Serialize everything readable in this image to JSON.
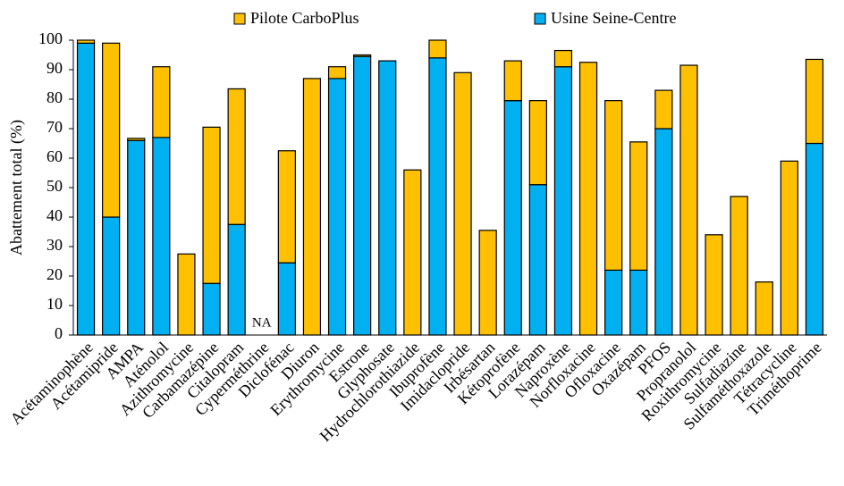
{
  "chart_data": {
    "type": "stacked_bar",
    "ylabel": "Abattement total (%)",
    "categories": [
      "Acétaminophène",
      "Acétamipride",
      "AMPA",
      "Aténolol",
      "Azithromycine",
      "Carbamazépine",
      "Citalopram",
      "Cyperméthrine",
      "Diclofénac",
      "Diuron",
      "Erythromycine",
      "Estrone",
      "Glyphosate",
      "Hydrochlorothiazide",
      "Ibuprofène",
      "Imidaclopride",
      "Irbésartan",
      "Kétoprofène",
      "Lorazépam",
      "Naproxène",
      "Norfloxacine",
      "Ofloxacine",
      "Oxazépam",
      "PFOS",
      "Propranolol",
      "Roxithromycine",
      "Sulfadiazine",
      "Sulfaméthoxazole",
      "Tétracycline",
      "Triméthoprime"
    ],
    "series": [
      {
        "name": "Usine Seine-Centre",
        "color": "#00b0f0",
        "values": [
          99,
          40,
          66,
          67,
          0,
          17.5,
          37.5,
          null,
          24.5,
          0,
          87,
          94.5,
          93,
          0,
          94,
          0,
          0,
          79.5,
          51,
          91,
          0,
          22,
          22,
          70,
          0,
          0,
          0,
          0,
          0,
          65
        ]
      },
      {
        "name": "Pilote CarboPlus",
        "color": "#ffc000",
        "values": [
          1,
          59,
          0.7,
          24,
          27.5,
          53,
          46,
          null,
          38,
          87,
          4,
          0.5,
          0,
          56,
          6,
          89,
          35.5,
          13.5,
          28.5,
          5.5,
          92.5,
          57.5,
          43.5,
          13,
          91.5,
          34,
          47,
          18,
          59,
          28.5
        ]
      }
    ],
    "annotations": [
      {
        "category": "Cyperméthrine",
        "text": "NA"
      }
    ],
    "ylim": [
      0,
      100
    ],
    "yticks": [
      0,
      10,
      20,
      30,
      40,
      50,
      60,
      70,
      80,
      90,
      100
    ],
    "grid": false,
    "legend": "top"
  }
}
